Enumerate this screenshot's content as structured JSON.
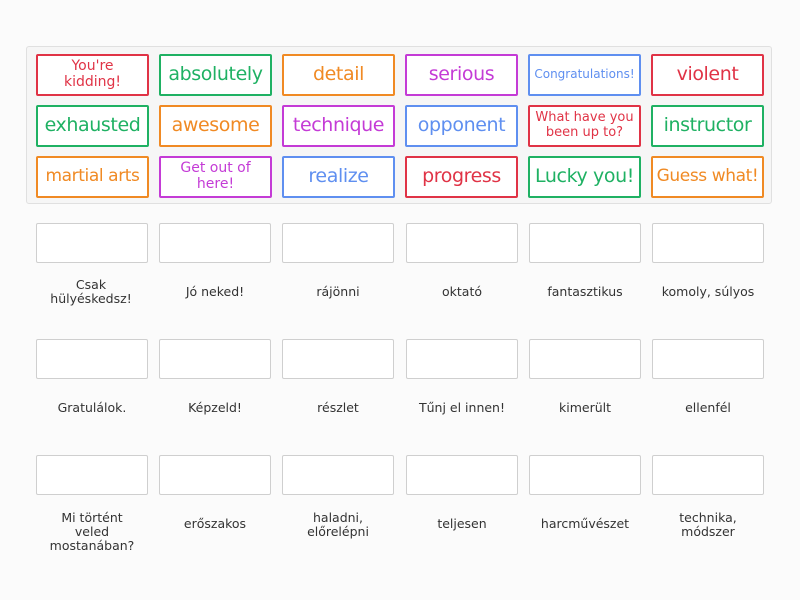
{
  "tile_bank": {
    "tiles": [
      {
        "text": "You're kidding!",
        "color": "#e03346"
      },
      {
        "text": "absolutely",
        "color": "#1fb163"
      },
      {
        "text": "detail",
        "color": "#f08a24"
      },
      {
        "text": "serious",
        "color": "#c43bd6"
      },
      {
        "text": "Congratulations!",
        "color": "#5f8ff0"
      },
      {
        "text": "violent",
        "color": "#e03346"
      },
      {
        "text": "exhausted",
        "color": "#1fb163"
      },
      {
        "text": "awesome",
        "color": "#f08a24"
      },
      {
        "text": "technique",
        "color": "#c43bd6"
      },
      {
        "text": "opponent",
        "color": "#5f8ff0"
      },
      {
        "text": "What have you been up to?",
        "color": "#e03346"
      },
      {
        "text": "instructor",
        "color": "#1fb163"
      },
      {
        "text": "martial arts",
        "color": "#f08a24"
      },
      {
        "text": "Get out of here!",
        "color": "#c43bd6"
      },
      {
        "text": "realize",
        "color": "#5f8ff0"
      },
      {
        "text": "progress",
        "color": "#e03346"
      },
      {
        "text": "Lucky you!",
        "color": "#1fb163"
      },
      {
        "text": "Guess what!",
        "color": "#f08a24"
      }
    ]
  },
  "targets": [
    {
      "label": "Csak hülyéskedsz!"
    },
    {
      "label": "Jó neked!"
    },
    {
      "label": "rájönni"
    },
    {
      "label": "oktató"
    },
    {
      "label": "fantasztikus"
    },
    {
      "label": "komoly, súlyos"
    },
    {
      "label": "Gratulálok."
    },
    {
      "label": "Képzeld!"
    },
    {
      "label": "részlet"
    },
    {
      "label": "Tűnj el innen!"
    },
    {
      "label": "kimerült"
    },
    {
      "label": "ellenfél"
    },
    {
      "label": "Mi történt veled mostanában?"
    },
    {
      "label": "erőszakos"
    },
    {
      "label": "haladni, előrelépni"
    },
    {
      "label": "teljesen"
    },
    {
      "label": "harcművészet"
    },
    {
      "label": "technika, módszer"
    }
  ]
}
